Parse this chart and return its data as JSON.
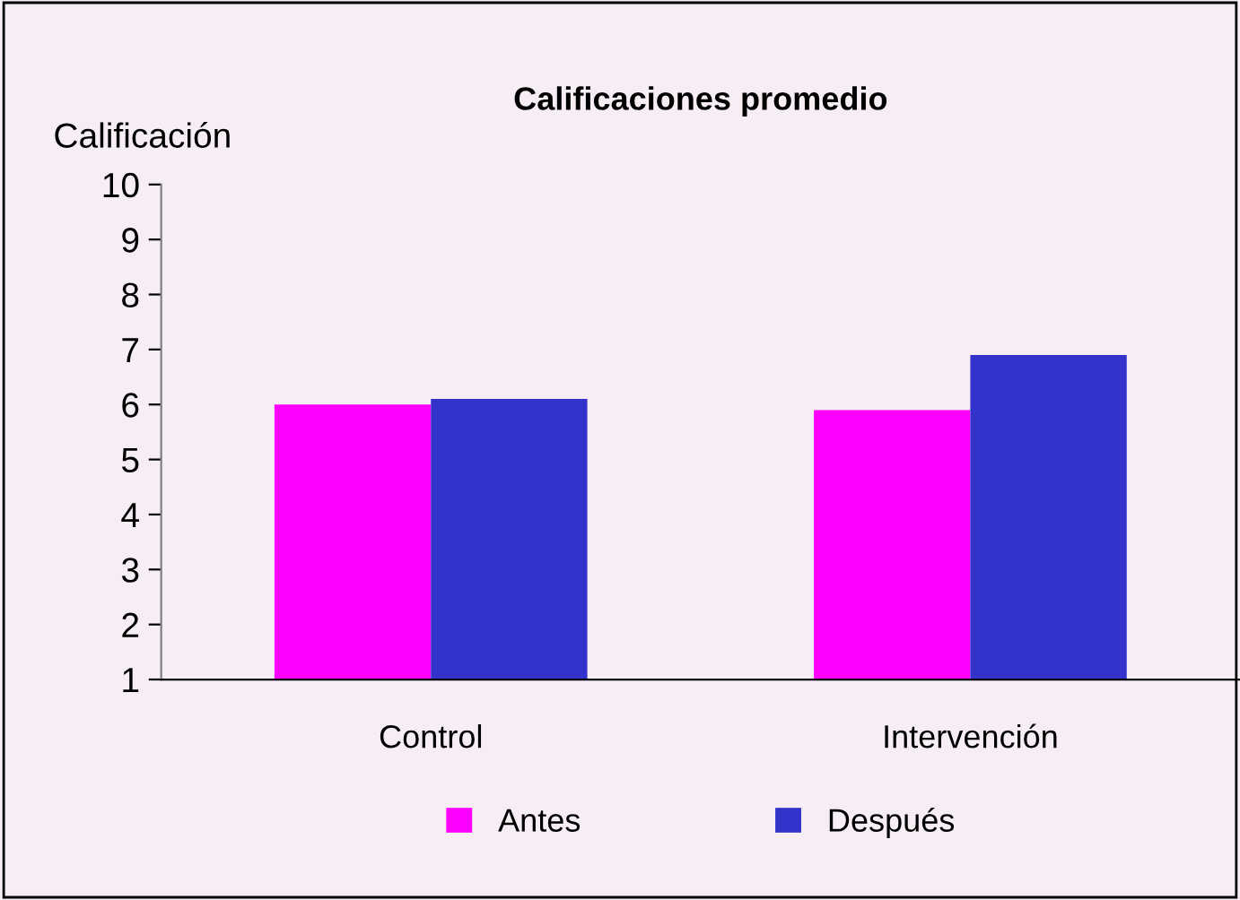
{
  "chart_data": {
    "type": "bar",
    "title": "Calificaciones promedio",
    "ylabel": "Calificación",
    "categories": [
      "Control",
      "Intervención"
    ],
    "series": [
      {
        "name": "Antes",
        "color": "#ff00ff",
        "values": [
          6.0,
          5.9
        ]
      },
      {
        "name": "Después",
        "color": "#3333cc",
        "values": [
          6.1,
          6.9
        ]
      }
    ],
    "ylim": [
      1,
      10
    ],
    "yticks": [
      1,
      2,
      3,
      4,
      5,
      6,
      7,
      8,
      9,
      10
    ],
    "grid": false,
    "legend": "bottom"
  }
}
